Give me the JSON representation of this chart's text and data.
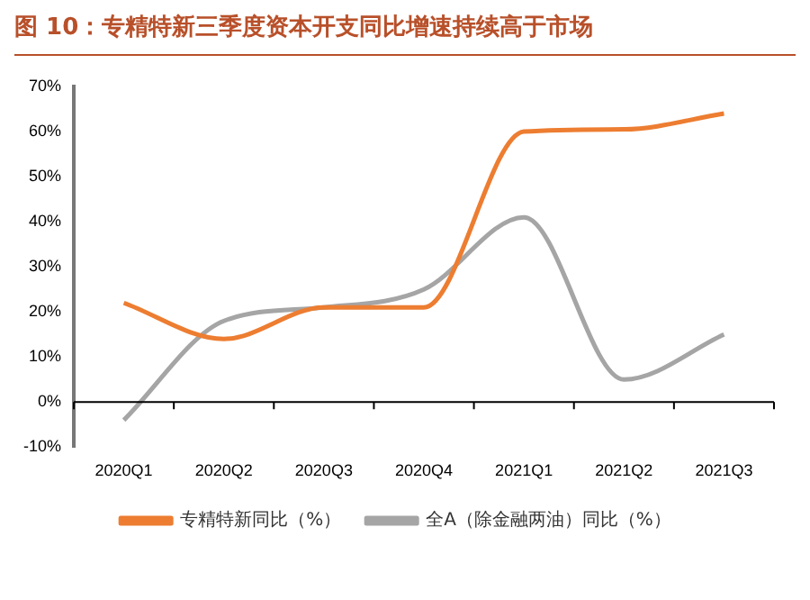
{
  "chart_data": {
    "type": "line",
    "title": "图 10：专精特新三季度资本开支同比增速持续高于市场",
    "categories": [
      "2020Q1",
      "2020Q2",
      "2020Q3",
      "2020Q4",
      "2021Q1",
      "2021Q2",
      "2021Q3"
    ],
    "series": [
      {
        "name": "专精特新同比（%）",
        "color": "#ed7d31",
        "values": [
          22,
          14,
          21,
          21,
          60,
          60.5,
          64
        ]
      },
      {
        "name": "全A（除金融两油）同比（%）",
        "color": "#a5a5a5",
        "values": [
          -4,
          18,
          21,
          25,
          41,
          5,
          15
        ]
      }
    ],
    "ylim": [
      -10,
      70
    ],
    "yticks": [
      {
        "value": -10,
        "label": "-10%"
      },
      {
        "value": 0,
        "label": "0%"
      },
      {
        "value": 10,
        "label": "10%"
      },
      {
        "value": 20,
        "label": "20%"
      },
      {
        "value": 30,
        "label": "30%"
      },
      {
        "value": 40,
        "label": "40%"
      },
      {
        "value": 50,
        "label": "50%"
      },
      {
        "value": 60,
        "label": "60%"
      },
      {
        "value": 70,
        "label": "70%"
      }
    ],
    "ref_lines": [
      {
        "axis": "y",
        "value": 0,
        "color": "#000000"
      }
    ],
    "grid": false,
    "legend": "bottom",
    "marker": "none",
    "line_style": "solid"
  }
}
